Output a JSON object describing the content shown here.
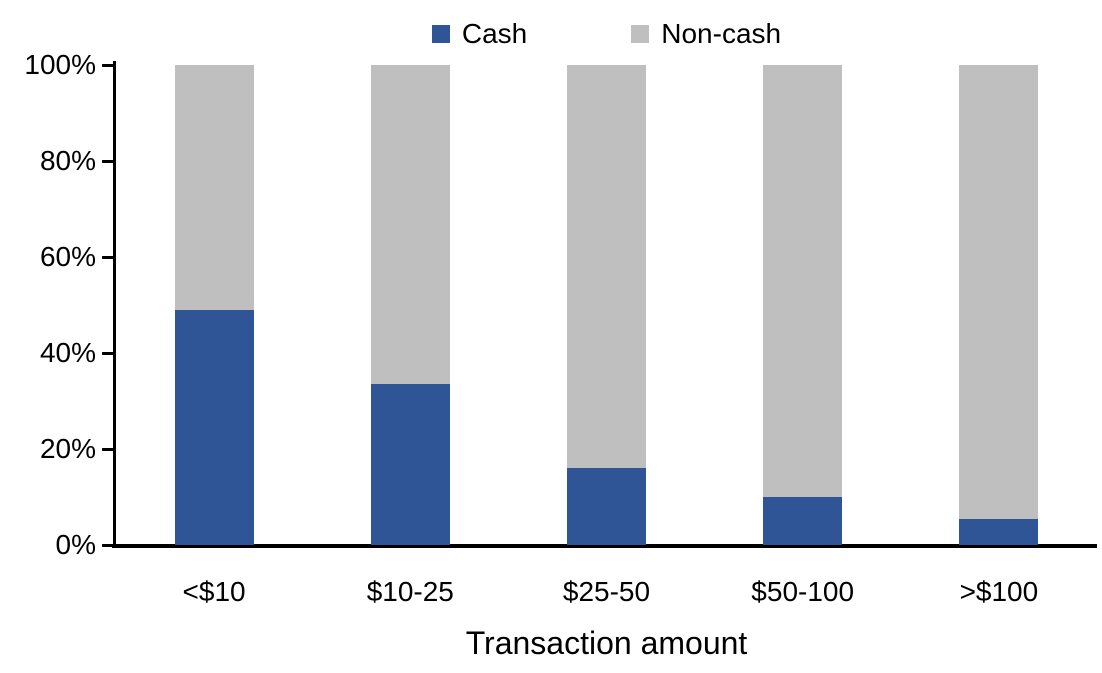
{
  "chart_data": {
    "type": "bar",
    "variant": "stacked-100-percent-column",
    "title": "",
    "xlabel": "Transaction amount",
    "ylabel": "",
    "categories": [
      "<$10",
      "$10-25",
      "$25-50",
      "$50-100",
      ">$100"
    ],
    "series": [
      {
        "name": "Cash",
        "color": "#2F5597",
        "values": [
          49,
          33.5,
          16,
          10,
          5.5
        ]
      },
      {
        "name": "Non-cash",
        "color": "#BFBFBF",
        "values": [
          51,
          66.5,
          84,
          90,
          94.5
        ]
      }
    ],
    "ylim": [
      0,
      100
    ],
    "yticks": [
      {
        "value": 0,
        "label": "0%"
      },
      {
        "value": 20,
        "label": "20%"
      },
      {
        "value": 40,
        "label": "40%"
      },
      {
        "value": 60,
        "label": "60%"
      },
      {
        "value": 80,
        "label": "80%"
      },
      {
        "value": 100,
        "label": "100%"
      }
    ],
    "legend": {
      "position": "top",
      "entries": [
        "Cash",
        "Non-cash"
      ]
    },
    "grid": false,
    "colors": {
      "axis": "#000000",
      "text": "#000000",
      "background": "#FFFFFF"
    }
  }
}
